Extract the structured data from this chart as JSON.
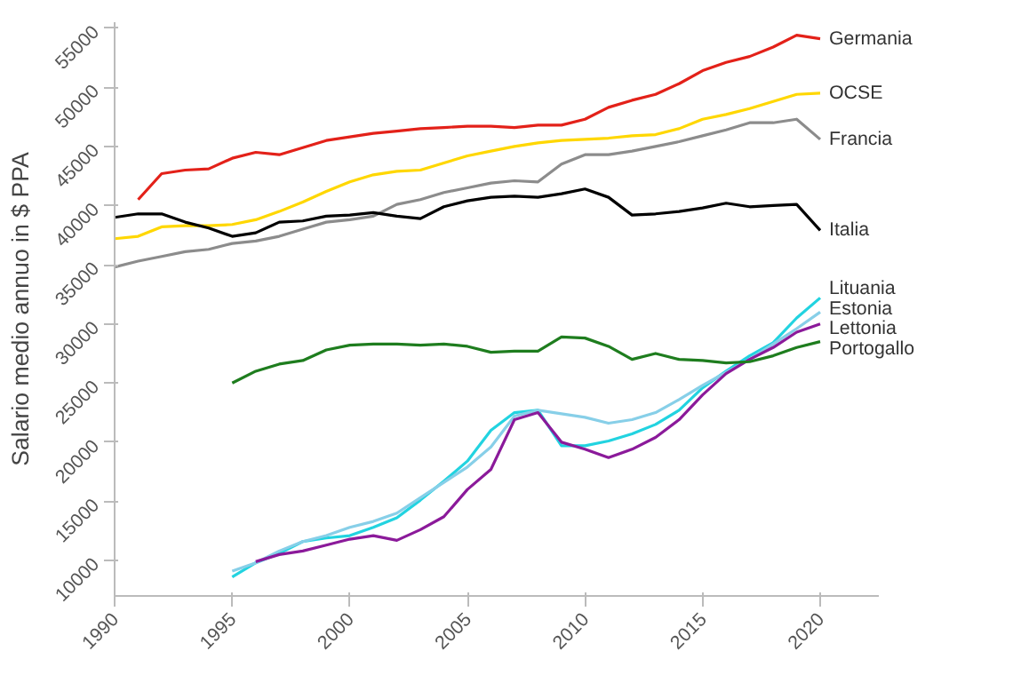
{
  "chart_data": {
    "type": "line",
    "ylabel": "Salario medio annuo in $ PPA",
    "legend": false,
    "grid": false,
    "xlim": [
      1990,
      2022.5
    ],
    "ylim": [
      7000,
      55500
    ],
    "xticks": [
      1990,
      1995,
      2000,
      2005,
      2010,
      2015,
      2020
    ],
    "yticks": [
      10000,
      15000,
      20000,
      25000,
      30000,
      35000,
      40000,
      45000,
      50000,
      55000
    ],
    "series": [
      {
        "name": "Germania",
        "color": "#e32119",
        "x": [
          1991,
          1992,
          1993,
          1994,
          1995,
          1996,
          1997,
          1998,
          1999,
          2000,
          2001,
          2002,
          2003,
          2004,
          2005,
          2006,
          2007,
          2008,
          2009,
          2010,
          2011,
          2012,
          2013,
          2014,
          2015,
          2016,
          2017,
          2018,
          2019,
          2020
        ],
        "values": [
          40500,
          42700,
          43000,
          43100,
          44000,
          44500,
          44300,
          44900,
          45500,
          45800,
          46100,
          46300,
          46500,
          46600,
          46700,
          46700,
          46600,
          46800,
          46800,
          47300,
          48300,
          48900,
          49400,
          50300,
          51400,
          52100,
          52600,
          53400,
          54400,
          54100
        ]
      },
      {
        "name": "OCSE",
        "color": "#ffd700",
        "x": [
          1990,
          1991,
          1992,
          1993,
          1994,
          1995,
          1996,
          1997,
          1998,
          1999,
          2000,
          2001,
          2002,
          2003,
          2004,
          2005,
          2006,
          2007,
          2008,
          2009,
          2010,
          2011,
          2012,
          2013,
          2014,
          2015,
          2016,
          2017,
          2018,
          2019,
          2020
        ],
        "values": [
          37200,
          37400,
          38200,
          38300,
          38300,
          38400,
          38800,
          39500,
          40300,
          41200,
          42000,
          42600,
          42900,
          43000,
          43600,
          44200,
          44600,
          45000,
          45300,
          45500,
          45600,
          45700,
          45900,
          46000,
          46500,
          47300,
          47700,
          48200,
          48800,
          49400,
          49500
        ]
      },
      {
        "name": "Francia",
        "color": "#8c8c8c",
        "x": [
          1990,
          1991,
          1992,
          1993,
          1994,
          1995,
          1996,
          1997,
          1998,
          1999,
          2000,
          2001,
          2002,
          2003,
          2004,
          2005,
          2006,
          2007,
          2008,
          2009,
          2010,
          2011,
          2012,
          2013,
          2014,
          2015,
          2016,
          2017,
          2018,
          2019,
          2020
        ],
        "values": [
          34800,
          35300,
          35700,
          36100,
          36300,
          36800,
          37000,
          37400,
          38000,
          38600,
          38800,
          39100,
          40100,
          40500,
          41100,
          41500,
          41900,
          42100,
          42000,
          43500,
          44300,
          44300,
          44600,
          45000,
          45400,
          45900,
          46400,
          47000,
          47000,
          47300,
          45600
        ]
      },
      {
        "name": "Italia",
        "color": "#000000",
        "x": [
          1990,
          1991,
          1992,
          1993,
          1994,
          1995,
          1996,
          1997,
          1998,
          1999,
          2000,
          2001,
          2002,
          2003,
          2004,
          2005,
          2006,
          2007,
          2008,
          2009,
          2010,
          2011,
          2012,
          2013,
          2014,
          2015,
          2016,
          2017,
          2018,
          2019,
          2020
        ],
        "values": [
          39000,
          39300,
          39300,
          38600,
          38100,
          37400,
          37700,
          38600,
          38700,
          39100,
          39200,
          39400,
          39100,
          38900,
          39900,
          40400,
          40700,
          40800,
          40700,
          41000,
          41400,
          40700,
          39200,
          39300,
          39500,
          39800,
          40200,
          39900,
          40000,
          40100,
          37900
        ]
      },
      {
        "name": "Lituania",
        "color": "#22d3e0",
        "x": [
          1995,
          1996,
          1997,
          1998,
          1999,
          2000,
          2001,
          2002,
          2003,
          2004,
          2005,
          2006,
          2007,
          2008,
          2009,
          2010,
          2011,
          2012,
          2013,
          2014,
          2015,
          2016,
          2017,
          2018,
          2019,
          2020
        ],
        "values": [
          8600,
          9800,
          10600,
          11600,
          11900,
          12100,
          12800,
          13600,
          15100,
          16700,
          18400,
          21000,
          22500,
          22700,
          19700,
          19700,
          20100,
          20700,
          21500,
          22700,
          24600,
          26000,
          27300,
          28400,
          30500,
          32200
        ]
      },
      {
        "name": "Estonia",
        "color": "#87cfe8",
        "x": [
          1995,
          1996,
          1997,
          1998,
          1999,
          2000,
          2001,
          2002,
          2003,
          2004,
          2005,
          2006,
          2007,
          2008,
          2009,
          2010,
          2011,
          2012,
          2013,
          2014,
          2015,
          2016,
          2017,
          2018,
          2019,
          2020
        ],
        "values": [
          9100,
          9800,
          10800,
          11600,
          12100,
          12800,
          13300,
          14000,
          15300,
          16600,
          17900,
          19600,
          22200,
          22700,
          22400,
          22100,
          21600,
          21900,
          22500,
          23600,
          24800,
          25900,
          27000,
          28300,
          29600,
          31000
        ]
      },
      {
        "name": "Lettonia",
        "color": "#8b1a9a",
        "x": [
          1996,
          1997,
          1998,
          1999,
          2000,
          2001,
          2002,
          2003,
          2004,
          2005,
          2006,
          2007,
          2008,
          2009,
          2010,
          2011,
          2012,
          2013,
          2014,
          2015,
          2016,
          2017,
          2018,
          2019,
          2020
        ],
        "values": [
          9900,
          10500,
          10800,
          11300,
          11800,
          12100,
          11700,
          12600,
          13700,
          16000,
          17700,
          21900,
          22500,
          20000,
          19400,
          18700,
          19400,
          20400,
          21900,
          24000,
          25800,
          27000,
          28000,
          29300,
          30000
        ]
      },
      {
        "name": "Portogallo",
        "color": "#1e7d1e",
        "x": [
          1995,
          1996,
          1997,
          1998,
          1999,
          2000,
          2001,
          2002,
          2003,
          2004,
          2005,
          2006,
          2007,
          2008,
          2009,
          2010,
          2011,
          2012,
          2013,
          2014,
          2015,
          2016,
          2017,
          2018,
          2019,
          2020
        ],
        "values": [
          25000,
          26000,
          26600,
          26900,
          27800,
          28200,
          28300,
          28300,
          28200,
          28300,
          28100,
          27600,
          27700,
          27700,
          28900,
          28800,
          28100,
          27000,
          27500,
          27000,
          26900,
          26700,
          26800,
          27300,
          28000,
          28500
        ]
      }
    ]
  }
}
